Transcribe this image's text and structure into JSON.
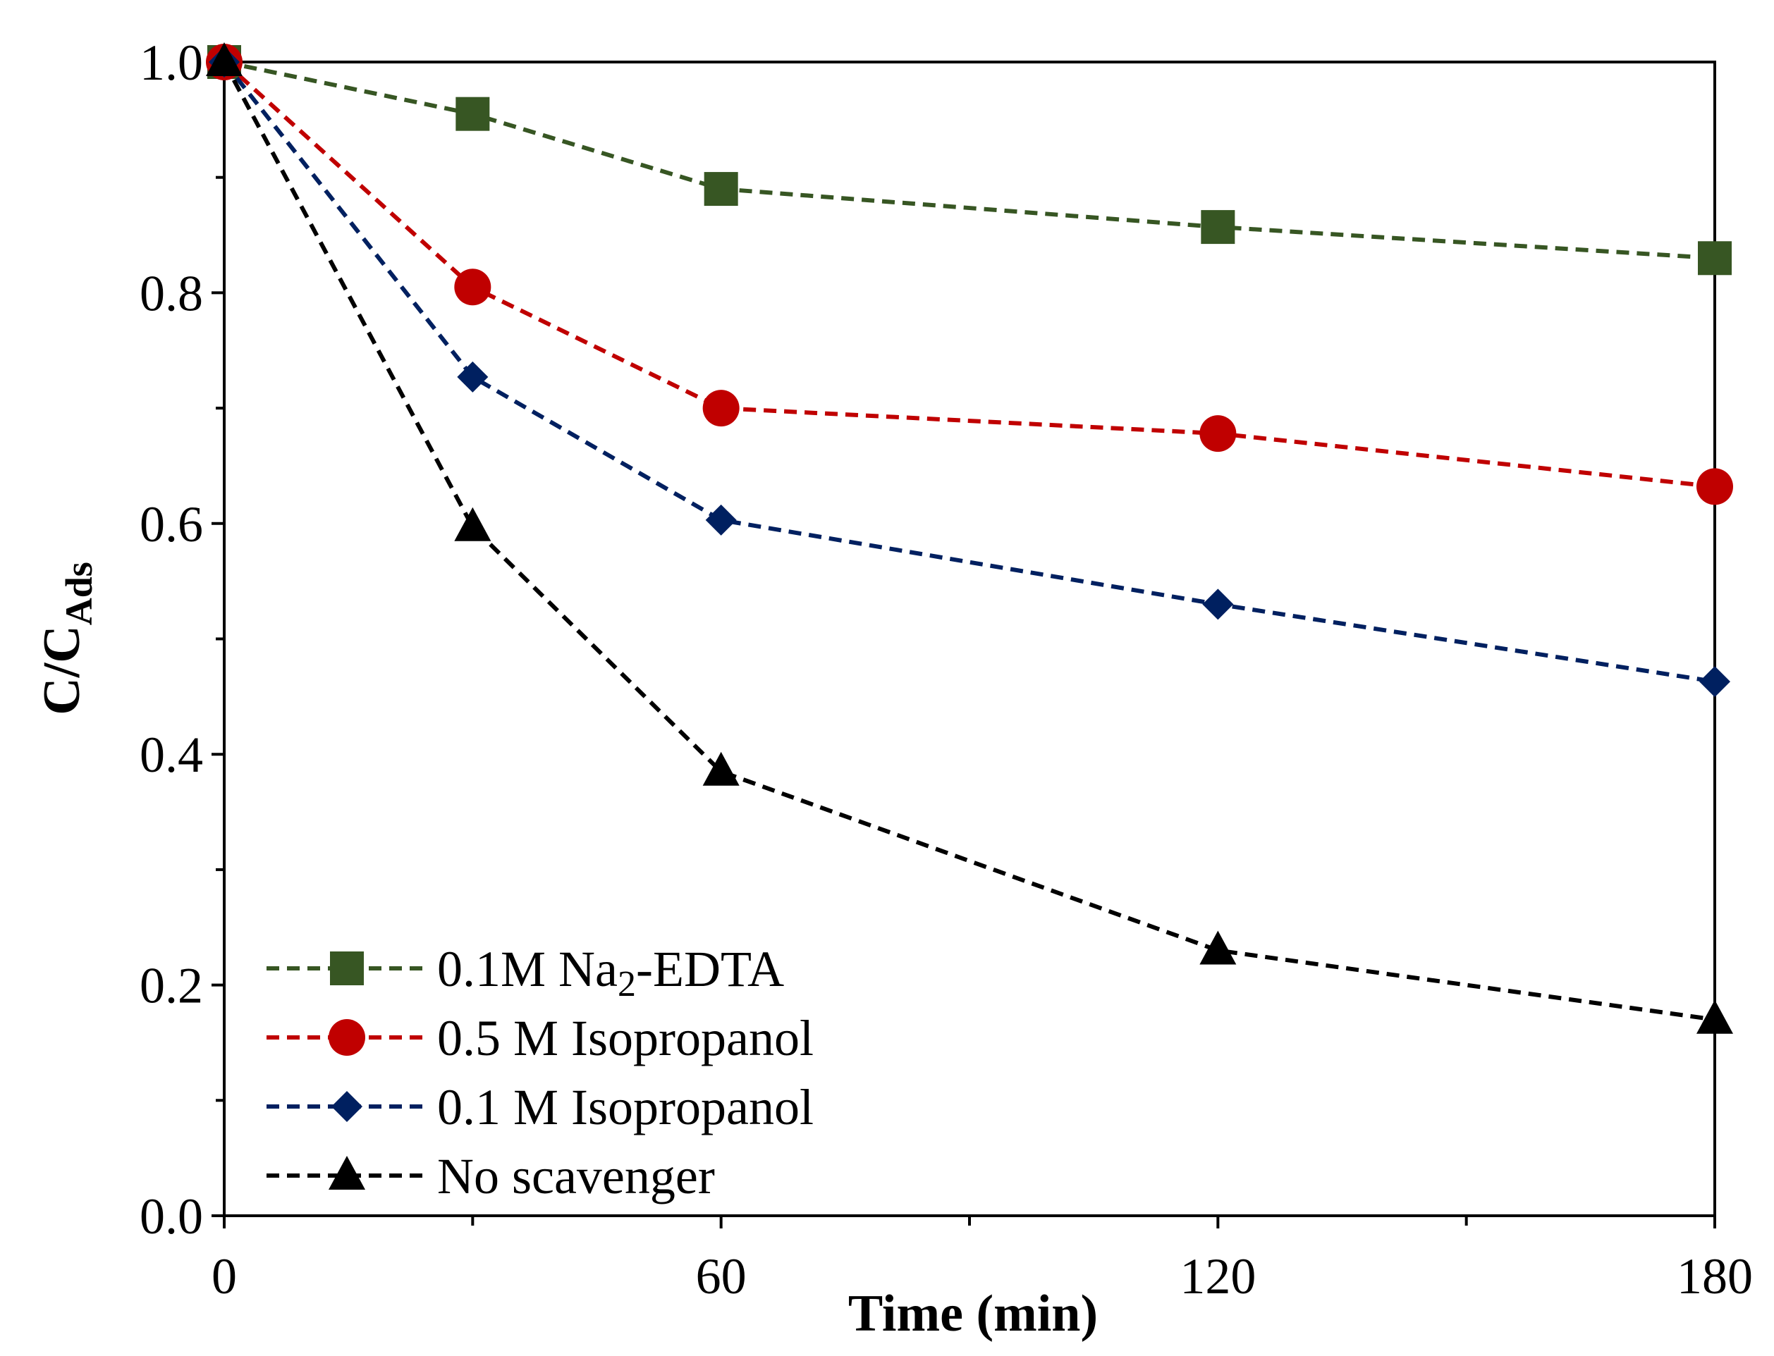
{
  "chart_data": {
    "type": "line",
    "title": "",
    "xlabel": "Time (min)",
    "ylabel_main": "C/C",
    "ylabel_sub": "Ads",
    "xlim": [
      0,
      180
    ],
    "ylim": [
      0,
      1.0
    ],
    "x_ticks": [
      "0",
      "60",
      "120",
      "180"
    ],
    "x_tick_values": [
      0,
      60,
      120,
      180
    ],
    "x_minor_ticks": [
      30,
      90,
      150
    ],
    "y_ticks": [
      "0.0",
      "0.2",
      "0.4",
      "0.6",
      "0.8",
      "1.0"
    ],
    "y_tick_values": [
      0,
      0.2,
      0.4,
      0.6,
      0.8,
      1.0
    ],
    "y_minor_ticks": [
      0.1,
      0.3,
      0.5,
      0.7,
      0.9
    ],
    "grid": false,
    "legend_position": "bottom-left",
    "x": [
      0,
      30,
      60,
      120,
      180
    ],
    "series": [
      {
        "name": "0.1M Na₂-EDTA",
        "legend_main": "0.1M Na",
        "legend_sub": "2",
        "legend_tail": "-EDTA",
        "marker": "square",
        "color": "#375623",
        "values": [
          1.0,
          0.955,
          0.89,
          0.857,
          0.83
        ]
      },
      {
        "name": "0.5 M Isopropanol",
        "legend_main": "0.5 M Isopropanol",
        "marker": "circle",
        "color": "#C00000",
        "values": [
          1.0,
          0.805,
          0.7,
          0.678,
          0.632
        ]
      },
      {
        "name": "0.1 M Isopropanol",
        "legend_main": "0.1 M Isopropanol",
        "marker": "diamond",
        "color": "#002060",
        "values": [
          1.0,
          0.727,
          0.603,
          0.53,
          0.463
        ]
      },
      {
        "name": "No scavenger",
        "legend_main": "No scavenger",
        "marker": "triangle",
        "color": "#000000",
        "values": [
          1.0,
          0.597,
          0.385,
          0.23,
          0.17
        ]
      }
    ]
  }
}
